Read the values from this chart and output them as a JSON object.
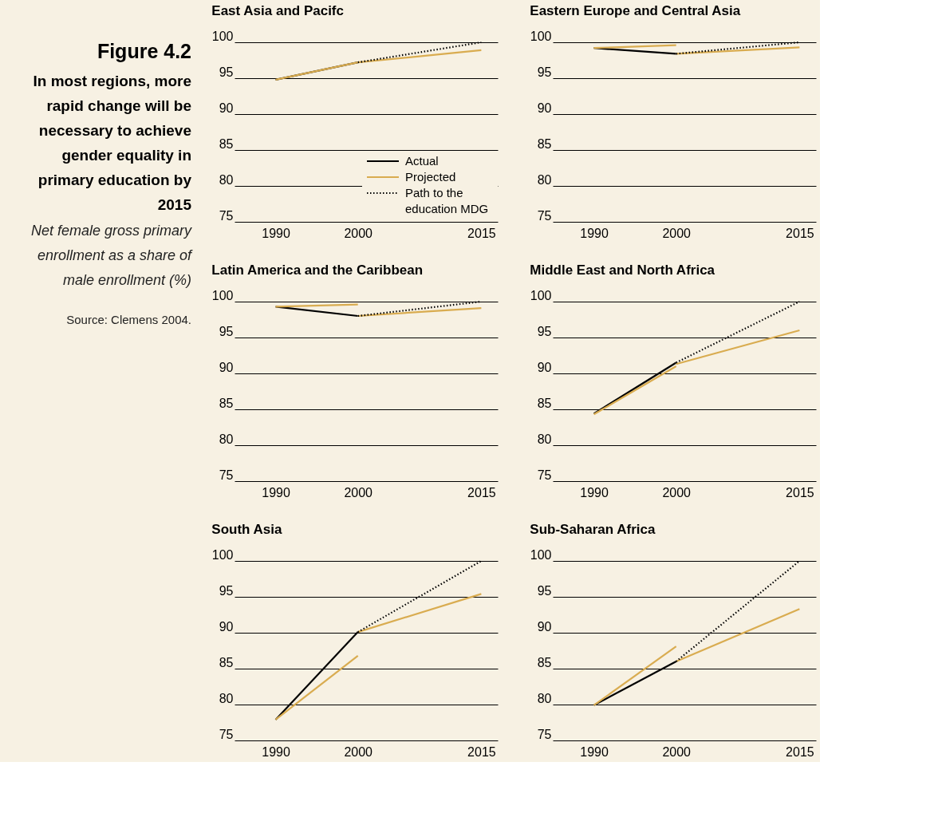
{
  "chart_data": [
    {
      "type": "other",
      "title": "Figure 4.2",
      "subtitle": "In most regions, more rapid change will be necessary to achieve gender equality in primary education by 2015",
      "annotations": [
        "Net female gross primary enrollment as a share of male enrollment (%)",
        "Source: Clemens 2004."
      ]
    },
    {
      "type": "line",
      "title": "East Asia and Pacifc",
      "xlim": [
        1985,
        2017
      ],
      "xticks": [
        1990,
        2000,
        2015
      ],
      "ylim": [
        75,
        100
      ],
      "yticks": [
        75,
        80,
        85,
        90,
        95,
        100
      ],
      "grid": "y",
      "legend": "bottom right",
      "series": [
        {
          "name": "Actual",
          "color": "#000000",
          "line_style": "solid",
          "x": [
            1990,
            2000
          ],
          "values": [
            94.8,
            97.2
          ]
        },
        {
          "name": "Projected",
          "color": "#d9ac50",
          "line_style": "solid",
          "x": [
            1990,
            2000,
            2015
          ],
          "values": [
            94.8,
            97.2,
            98.9
          ]
        },
        {
          "name": "Path to the education MDG",
          "color": "#000000",
          "line_style": "dotted",
          "x": [
            2000,
            2015
          ],
          "values": [
            97.2,
            100
          ]
        }
      ]
    },
    {
      "type": "line",
      "title": "Eastern Europe and Central Asia",
      "xlim": [
        1985,
        2017
      ],
      "xticks": [
        1990,
        2000,
        2015
      ],
      "ylim": [
        75,
        100
      ],
      "yticks": [
        75,
        80,
        85,
        90,
        95,
        100
      ],
      "grid": "y",
      "series": [
        {
          "color": "#000000",
          "line_style": "solid",
          "x": [
            1990,
            2000
          ],
          "values": [
            99.2,
            98.4
          ]
        },
        {
          "color": "#d9ac50",
          "line_style": "solid",
          "x": [
            1990,
            2000
          ],
          "values": [
            99.2,
            99.6
          ]
        },
        {
          "color": "#d9ac50",
          "line_style": "solid",
          "x": [
            2000,
            2015
          ],
          "values": [
            98.4,
            99.3
          ]
        },
        {
          "color": "#000000",
          "line_style": "dotted",
          "x": [
            2000,
            2015
          ],
          "values": [
            98.4,
            100
          ]
        }
      ]
    },
    {
      "type": "line",
      "title": "Latin America and the Caribbean",
      "xlim": [
        1985,
        2017
      ],
      "xticks": [
        1990,
        2000,
        2015
      ],
      "ylim": [
        75,
        100
      ],
      "yticks": [
        75,
        80,
        85,
        90,
        95,
        100
      ],
      "grid": "y",
      "series": [
        {
          "color": "#000000",
          "line_style": "solid",
          "x": [
            1990,
            2000
          ],
          "values": [
            99.3,
            98.0
          ]
        },
        {
          "color": "#d9ac50",
          "line_style": "solid",
          "x": [
            1990,
            2000
          ],
          "values": [
            99.3,
            99.6
          ]
        },
        {
          "color": "#d9ac50",
          "line_style": "solid",
          "x": [
            2000,
            2015
          ],
          "values": [
            98.0,
            99.1
          ]
        },
        {
          "color": "#000000",
          "line_style": "dotted",
          "x": [
            2000,
            2015
          ],
          "values": [
            98.0,
            100
          ]
        }
      ]
    },
    {
      "type": "line",
      "title": "Middle East and North Africa",
      "xlim": [
        1985,
        2017
      ],
      "xticks": [
        1990,
        2000,
        2015
      ],
      "ylim": [
        75,
        100
      ],
      "yticks": [
        75,
        80,
        85,
        90,
        95,
        100
      ],
      "grid": "y",
      "series": [
        {
          "color": "#000000",
          "line_style": "solid",
          "x": [
            1990,
            2000
          ],
          "values": [
            84.4,
            91.5
          ]
        },
        {
          "color": "#d9ac50",
          "line_style": "solid",
          "x": [
            1990,
            2000
          ],
          "values": [
            84.3,
            91.0
          ]
        },
        {
          "color": "#d9ac50",
          "line_style": "solid",
          "x": [
            2000,
            2015
          ],
          "values": [
            91.3,
            96.0
          ]
        },
        {
          "color": "#000000",
          "line_style": "dotted",
          "x": [
            2000,
            2015
          ],
          "values": [
            91.5,
            100
          ]
        }
      ]
    },
    {
      "type": "line",
      "title": "South Asia",
      "xlim": [
        1985,
        2017
      ],
      "xticks": [
        1990,
        2000,
        2015
      ],
      "ylim": [
        75,
        100
      ],
      "yticks": [
        75,
        80,
        85,
        90,
        95,
        100
      ],
      "grid": "y",
      "series": [
        {
          "color": "#000000",
          "line_style": "solid",
          "x": [
            1990,
            2000
          ],
          "values": [
            77.9,
            90.1
          ]
        },
        {
          "color": "#d9ac50",
          "line_style": "solid",
          "x": [
            1990,
            2000
          ],
          "values": [
            77.9,
            86.8
          ]
        },
        {
          "color": "#d9ac50",
          "line_style": "solid",
          "x": [
            2000,
            2015
          ],
          "values": [
            90.1,
            95.4
          ]
        },
        {
          "color": "#000000",
          "line_style": "dotted",
          "x": [
            2000,
            2015
          ],
          "values": [
            90.1,
            100
          ]
        }
      ]
    },
    {
      "type": "line",
      "title": "Sub-Saharan Africa",
      "xlim": [
        1985,
        2017
      ],
      "xticks": [
        1990,
        2000,
        2015
      ],
      "ylim": [
        75,
        100
      ],
      "yticks": [
        75,
        80,
        85,
        90,
        95,
        100
      ],
      "grid": "y",
      "series": [
        {
          "color": "#000000",
          "line_style": "solid",
          "x": [
            1990,
            2000
          ],
          "values": [
            79.9,
            86.0
          ]
        },
        {
          "color": "#d9ac50",
          "line_style": "solid",
          "x": [
            1990,
            2000
          ],
          "values": [
            79.9,
            88.1
          ]
        },
        {
          "color": "#d9ac50",
          "line_style": "solid",
          "x": [
            2000,
            2015
          ],
          "values": [
            86.0,
            93.3
          ]
        },
        {
          "color": "#000000",
          "line_style": "dotted",
          "x": [
            2000,
            2015
          ],
          "values": [
            86.0,
            100
          ]
        }
      ]
    }
  ]
}
